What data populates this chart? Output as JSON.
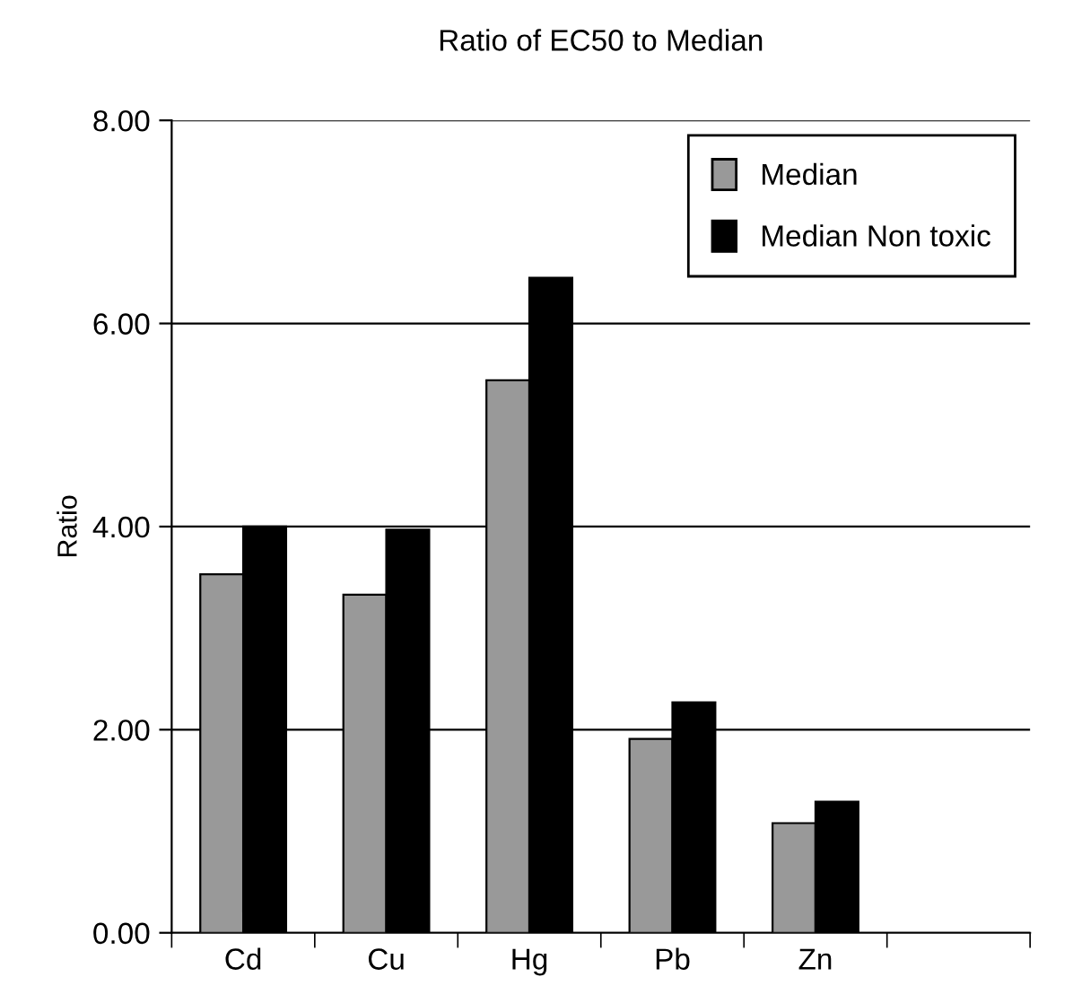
{
  "chart_data": {
    "type": "bar",
    "title": "Ratio of EC50 to Median",
    "ylabel": "Ratio",
    "categories": [
      "Cd",
      "Cu",
      "Hg",
      "Pb",
      "Zn",
      null
    ],
    "series": [
      {
        "name": "Median",
        "color": "#999999",
        "values": [
          3.53,
          3.33,
          5.44,
          1.91,
          1.08,
          null
        ]
      },
      {
        "name": "Median Non toxic",
        "color": "#000000",
        "values": [
          4.0,
          3.97,
          6.45,
          2.27,
          1.29,
          null
        ]
      }
    ],
    "ylim": [
      0,
      8
    ],
    "yticks": [
      {
        "value": 0,
        "label": "0.00"
      },
      {
        "value": 2,
        "label": "2.00"
      },
      {
        "value": 4,
        "label": "4.00"
      },
      {
        "value": 6,
        "label": "6.00"
      },
      {
        "value": 8,
        "label": "8.00"
      }
    ],
    "grid": "y",
    "legend": "top right"
  }
}
